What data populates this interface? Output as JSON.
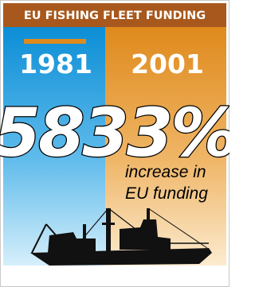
{
  "header": {
    "title": "EU FISHING FLEET FUNDING"
  },
  "years": [
    "1981",
    "2001"
  ],
  "headline": "5833%",
  "caption": [
    "increase in",
    "EU funding"
  ]
}
